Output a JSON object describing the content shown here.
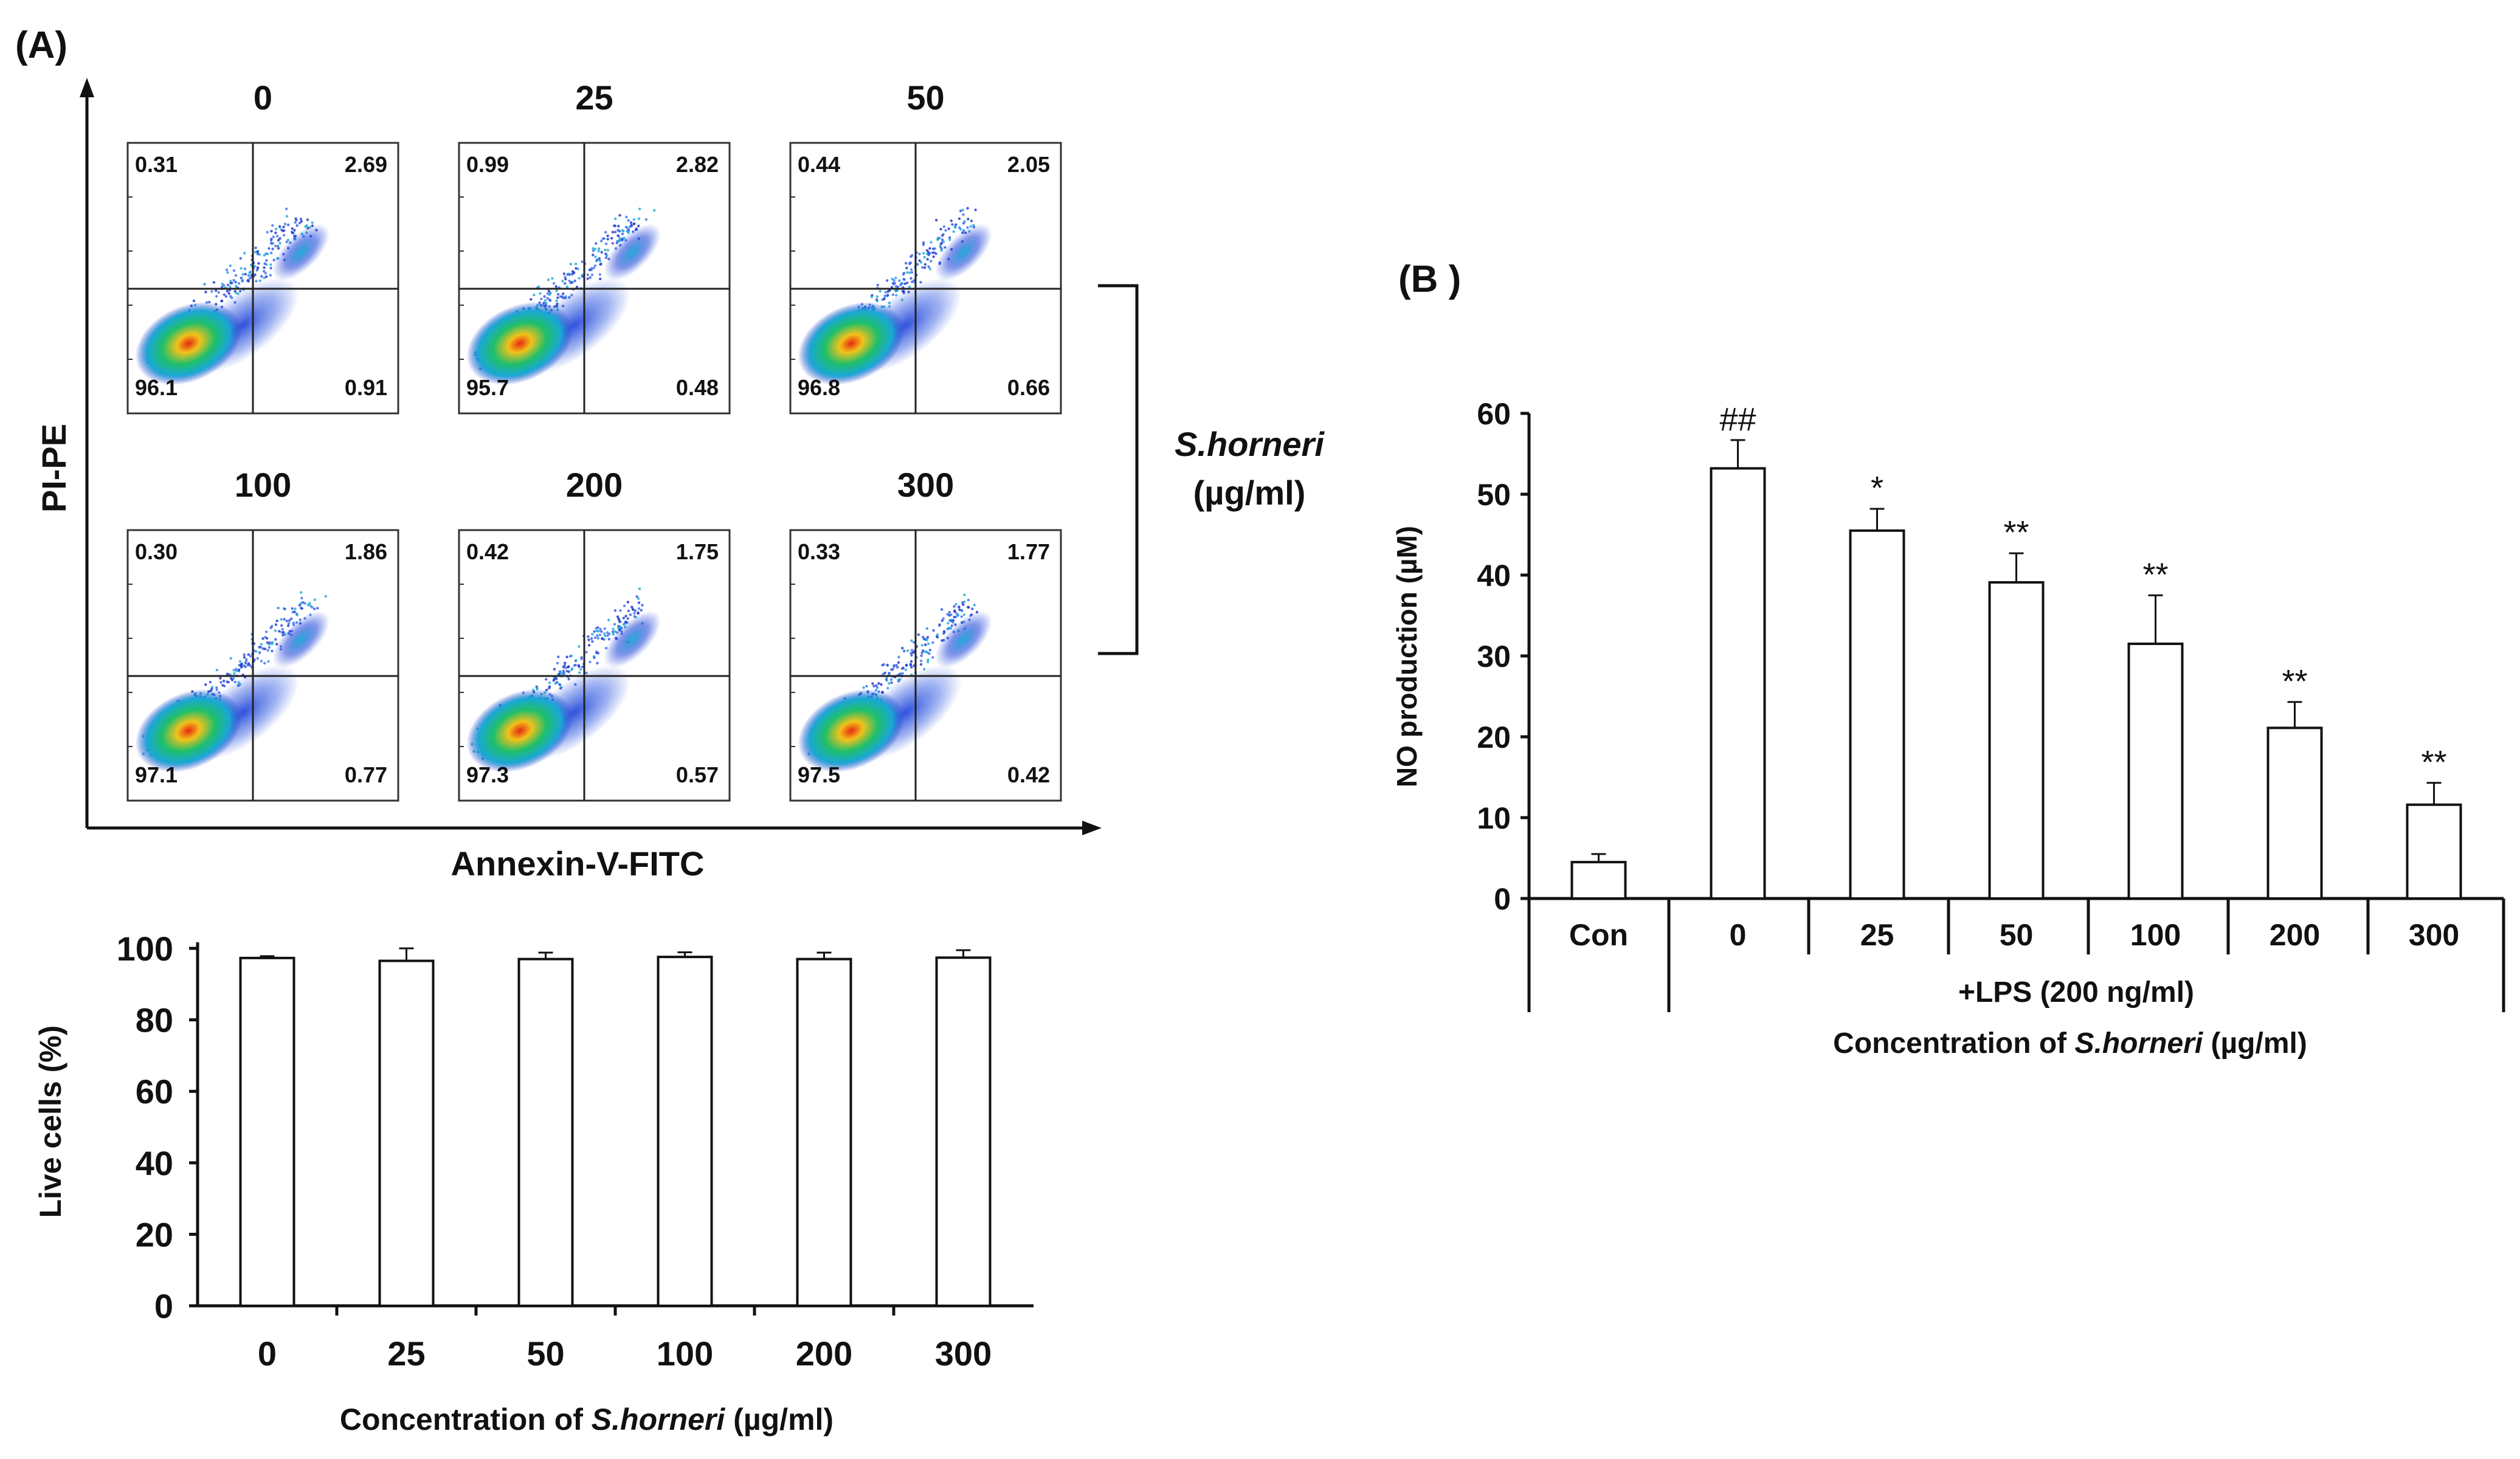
{
  "panel_a_label": "(A)",
  "panel_b_label": "(B )",
  "flow": {
    "y_axis_label": "PI-PE",
    "x_axis_label": "Annexin-V-FITC",
    "bracket_label_1": "S.horneri",
    "bracket_label_2": "(µg/ml)",
    "colors": {
      "low": "#1a2fc8",
      "mid": "#1fbf6a",
      "high": "#e62a10"
    },
    "plots": [
      {
        "concentration": "0",
        "q_ul": "0.31",
        "q_ur": "2.69",
        "q_ll": "96.1",
        "q_lr": "0.91"
      },
      {
        "concentration": "25",
        "q_ul": "0.99",
        "q_ur": "2.82",
        "q_ll": "95.7",
        "q_lr": "0.48"
      },
      {
        "concentration": "50",
        "q_ul": "0.44",
        "q_ur": "2.05",
        "q_ll": "96.8",
        "q_lr": "0.66"
      },
      {
        "concentration": "100",
        "q_ul": "0.30",
        "q_ur": "1.86",
        "q_ll": "97.1",
        "q_lr": "0.77"
      },
      {
        "concentration": "200",
        "q_ul": "0.42",
        "q_ur": "1.75",
        "q_ll": "97.3",
        "q_lr": "0.57"
      },
      {
        "concentration": "300",
        "q_ul": "0.33",
        "q_ur": "1.77",
        "q_ll": "97.5",
        "q_lr": "0.42"
      }
    ]
  },
  "chart_data": [
    {
      "type": "bar",
      "id": "viability",
      "categories": [
        "0",
        "25",
        "50",
        "100",
        "200",
        "300"
      ],
      "values": [
        97.3,
        96.5,
        97.0,
        97.6,
        97.0,
        97.4
      ],
      "errors": [
        0.5,
        3.5,
        1.8,
        1.3,
        1.8,
        2.1
      ],
      "ylabel": "Live cells (%)",
      "xlabel_prefix": "Concentration of ",
      "xlabel_italic": "S.horneri",
      "xlabel_suffix": " (µg/ml)",
      "ylim": [
        0,
        100
      ],
      "yticks": [
        0,
        20,
        40,
        60,
        80,
        100
      ]
    },
    {
      "type": "bar",
      "id": "no_production",
      "categories": [
        "Con",
        "0",
        "25",
        "50",
        "100",
        "200",
        "300"
      ],
      "values": [
        4.5,
        53.2,
        45.5,
        39.1,
        31.5,
        21.1,
        11.6
      ],
      "errors": [
        1.0,
        3.5,
        2.7,
        3.6,
        6.0,
        3.2,
        2.7
      ],
      "annotations": [
        "",
        "##",
        "*",
        "**",
        "**",
        "**",
        "**"
      ],
      "ylabel": "NO production (µM)",
      "group_label": "+LPS (200 ng/ml)",
      "xlabel_prefix": "Concentration of ",
      "xlabel_italic": "S.horneri",
      "xlabel_suffix": " (µg/ml)",
      "ylim": [
        0,
        60
      ],
      "yticks": [
        0,
        10,
        20,
        30,
        40,
        50,
        60
      ]
    }
  ]
}
